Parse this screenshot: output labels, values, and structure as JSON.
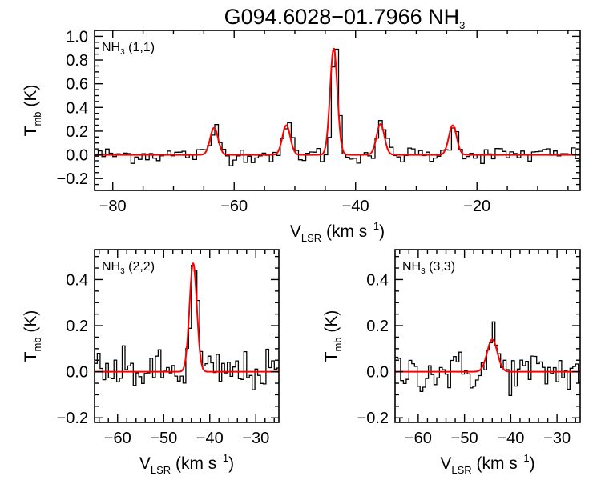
{
  "title": {
    "main": "G094.6028−01.7966 NH",
    "sub": "3"
  },
  "axis_text": {
    "ylabel_main": "T",
    "ylabel_sub": "mb",
    "ylabel_rest": " (K)",
    "xlabel_main": "V",
    "xlabel_sub": "LSR",
    "xlabel_rest": " (km s",
    "xlabel_sup": "−1",
    "xlabel_close": ")"
  },
  "colors": {
    "data": "#000000",
    "fit": "#ff0000"
  },
  "chart_data": [
    {
      "id": "nh3-11",
      "type": "line",
      "label_main": "NH",
      "label_sub": "3",
      "label_rest": " (1,1)",
      "xlim": [
        -83,
        -3
      ],
      "ylim": [
        -0.3,
        1.05
      ],
      "xticks": [
        -80,
        -60,
        -40,
        -20
      ],
      "yticks": [
        -0.2,
        0.0,
        0.2,
        0.4,
        0.6,
        0.8,
        1.0
      ],
      "xtick_labels": [
        "−80",
        "−60",
        "−40",
        "−20"
      ],
      "ytick_labels": [
        "−0.2",
        "0.0",
        "0.2",
        "0.4",
        "0.6",
        "0.8",
        "1.0"
      ],
      "ylabel": "T_mb (K)",
      "xlabel": "V_LSR (km s^-1)",
      "series": [
        {
          "kind": "observed spectrum (histogram)",
          "noise_rms": 0.035,
          "components": [
            {
              "v": -63.3,
              "amp": 0.25,
              "sigma": 0.6
            },
            {
              "v": -51.4,
              "amp": 0.27,
              "sigma": 0.6
            },
            {
              "v": -43.6,
              "amp": 0.93,
              "sigma": 0.55
            },
            {
              "v": -35.9,
              "amp": 0.27,
              "sigma": 0.6
            },
            {
              "v": -24.0,
              "amp": 0.27,
              "sigma": 0.6
            }
          ]
        },
        {
          "kind": "gaussian fit",
          "components": [
            {
              "v": -63.3,
              "amp": 0.23,
              "sigma": 0.65
            },
            {
              "v": -51.4,
              "amp": 0.25,
              "sigma": 0.65
            },
            {
              "v": -43.6,
              "amp": 0.9,
              "sigma": 0.6
            },
            {
              "v": -35.9,
              "amp": 0.26,
              "sigma": 0.65
            },
            {
              "v": -24.0,
              "amp": 0.25,
              "sigma": 0.65
            }
          ]
        }
      ]
    },
    {
      "id": "nh3-22",
      "type": "line",
      "label_main": "NH",
      "label_sub": "3",
      "label_rest": " (2,2)",
      "xlim": [
        -65,
        -25
      ],
      "ylim": [
        -0.22,
        0.53
      ],
      "xticks": [
        -60,
        -50,
        -40,
        -30
      ],
      "yticks": [
        -0.2,
        0.0,
        0.2,
        0.4
      ],
      "xtick_labels": [
        "−60",
        "−50",
        "−40",
        "−30"
      ],
      "ytick_labels": [
        "−0.2",
        "0.0",
        "0.2",
        "0.4"
      ],
      "ylabel": "T_mb (K)",
      "xlabel": "V_LSR (km s^-1)",
      "series": [
        {
          "kind": "observed spectrum (histogram)",
          "noise_rms": 0.045,
          "components": [
            {
              "v": -43.6,
              "amp": 0.47,
              "sigma": 0.75
            }
          ]
        },
        {
          "kind": "gaussian fit",
          "components": [
            {
              "v": -43.6,
              "amp": 0.47,
              "sigma": 0.8
            }
          ]
        }
      ]
    },
    {
      "id": "nh3-33",
      "type": "line",
      "label_main": "NH",
      "label_sub": "3",
      "label_rest": " (3,3)",
      "xlim": [
        -65,
        -25
      ],
      "ylim": [
        -0.22,
        0.53
      ],
      "xticks": [
        -60,
        -50,
        -40,
        -30
      ],
      "yticks": [
        -0.2,
        0.0,
        0.2,
        0.4
      ],
      "xtick_labels": [
        "−60",
        "−50",
        "−40",
        "−30"
      ],
      "ytick_labels": [
        "−0.2",
        "0.0",
        "0.2",
        "0.4"
      ],
      "ylabel": "T_mb (K)",
      "xlabel": "V_LSR (km s^-1)",
      "series": [
        {
          "kind": "observed spectrum (histogram)",
          "noise_rms": 0.045,
          "components": [
            {
              "v": -44.0,
              "amp": 0.16,
              "sigma": 0.9
            }
          ]
        },
        {
          "kind": "gaussian fit",
          "components": [
            {
              "v": -44.0,
              "amp": 0.14,
              "sigma": 1.1
            }
          ]
        }
      ]
    }
  ]
}
